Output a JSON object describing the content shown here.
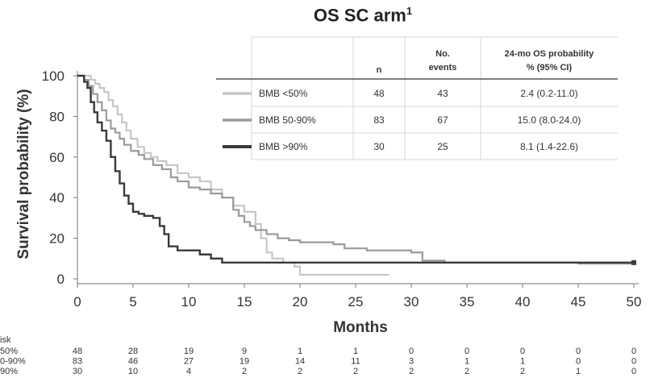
{
  "title": "OS SC arm",
  "title_superscript": "1",
  "chart_data": {
    "type": "line",
    "xlabel": "Months",
    "ylabel": "Survival probability (%)",
    "xlim": [
      0,
      50
    ],
    "ylim": [
      0,
      100
    ],
    "xticks": [
      0,
      5,
      10,
      15,
      20,
      25,
      30,
      35,
      40,
      45,
      50
    ],
    "yticks": [
      0,
      20,
      40,
      60,
      80,
      100
    ],
    "grid": false,
    "series": [
      {
        "name": "BMB <50%",
        "color": "#c6c6c6",
        "points": [
          [
            0,
            100
          ],
          [
            0.8,
            100
          ],
          [
            1.2,
            98
          ],
          [
            1.6,
            96
          ],
          [
            2,
            94
          ],
          [
            2.4,
            92
          ],
          [
            2.8,
            88
          ],
          [
            3.2,
            85
          ],
          [
            3.6,
            81
          ],
          [
            4,
            77
          ],
          [
            4.4,
            73
          ],
          [
            4.8,
            69
          ],
          [
            5.4,
            65
          ],
          [
            6,
            62
          ],
          [
            6.6,
            60
          ],
          [
            7.2,
            58
          ],
          [
            8,
            56
          ],
          [
            9,
            52
          ],
          [
            10,
            50
          ],
          [
            11,
            48
          ],
          [
            12,
            44
          ],
          [
            13,
            40
          ],
          [
            14,
            36
          ],
          [
            15,
            33
          ],
          [
            16,
            27
          ],
          [
            16.5,
            20
          ],
          [
            17,
            13
          ],
          [
            17.5,
            10
          ],
          [
            18.5,
            8
          ],
          [
            19.5,
            6
          ],
          [
            20,
            2
          ],
          [
            22,
            2
          ],
          [
            24,
            2
          ],
          [
            26,
            2
          ],
          [
            28,
            2
          ]
        ]
      },
      {
        "name": "BMB 50-90%",
        "color": "#9a9a9a",
        "points": [
          [
            0,
            100
          ],
          [
            0.6,
            98
          ],
          [
            1,
            95
          ],
          [
            1.4,
            91
          ],
          [
            1.8,
            87
          ],
          [
            2.2,
            83
          ],
          [
            2.6,
            78
          ],
          [
            3,
            74
          ],
          [
            3.4,
            72
          ],
          [
            3.8,
            69
          ],
          [
            4.2,
            66
          ],
          [
            4.8,
            63
          ],
          [
            5.5,
            61
          ],
          [
            6,
            59
          ],
          [
            6.8,
            56
          ],
          [
            7.6,
            54
          ],
          [
            8.4,
            50
          ],
          [
            9,
            48
          ],
          [
            10,
            45
          ],
          [
            11,
            44
          ],
          [
            12,
            42
          ],
          [
            13,
            40
          ],
          [
            14,
            34
          ],
          [
            14.5,
            31
          ],
          [
            15,
            28
          ],
          [
            15.5,
            26
          ],
          [
            16,
            24
          ],
          [
            17,
            22
          ],
          [
            18,
            20
          ],
          [
            19,
            19
          ],
          [
            20,
            18
          ],
          [
            22,
            18
          ],
          [
            23,
            17
          ],
          [
            24,
            15
          ],
          [
            26,
            14
          ],
          [
            28,
            14
          ],
          [
            30,
            13
          ],
          [
            31,
            9
          ],
          [
            33,
            8
          ],
          [
            35,
            8
          ],
          [
            40,
            8
          ],
          [
            43,
            8
          ],
          [
            45,
            7.5
          ],
          [
            50,
            7.5
          ]
        ]
      },
      {
        "name": "BMB >90%",
        "color": "#3a3a3a",
        "points": [
          [
            0,
            100
          ],
          [
            0.6,
            97
          ],
          [
            0.9,
            94
          ],
          [
            1.2,
            87
          ],
          [
            1.5,
            82
          ],
          [
            1.8,
            77
          ],
          [
            2.2,
            73
          ],
          [
            2.6,
            68
          ],
          [
            3,
            60
          ],
          [
            3.4,
            53
          ],
          [
            3.8,
            47
          ],
          [
            4.2,
            41
          ],
          [
            4.6,
            37
          ],
          [
            5,
            33
          ],
          [
            5.5,
            32
          ],
          [
            6,
            31
          ],
          [
            6.8,
            30
          ],
          [
            7.4,
            26
          ],
          [
            7.8,
            22
          ],
          [
            8.2,
            16
          ],
          [
            9,
            14
          ],
          [
            10,
            14
          ],
          [
            11,
            12
          ],
          [
            12,
            10
          ],
          [
            13,
            8
          ],
          [
            20,
            8
          ],
          [
            30,
            8
          ],
          [
            40,
            8
          ],
          [
            50,
            8
          ]
        ]
      }
    ],
    "legend_table": {
      "headers": [
        "",
        "n",
        "No. events",
        "24-mo OS probability % (95% CI)"
      ],
      "rows": [
        {
          "label": "BMB <50%",
          "n": "48",
          "events": "43",
          "os24": "2.4 (0.2-11.0)"
        },
        {
          "label": "BMB 50-90%",
          "n": "83",
          "events": "67",
          "os24": "15.0 (8.0-24.0)"
        },
        {
          "label": "BMB >90%",
          "n": "30",
          "events": "25",
          "os24": "8.1 (1.4-22.6)"
        }
      ]
    },
    "risk_table": {
      "header": "isk",
      "rows": [
        {
          "label": "50%",
          "values": [
            "48",
            "28",
            "19",
            "9",
            "1",
            "1",
            "0",
            "0",
            "0",
            "0",
            "0"
          ]
        },
        {
          "label": "0-90%",
          "values": [
            "83",
            "46",
            "27",
            "19",
            "14",
            "11",
            "3",
            "1",
            "1",
            "0",
            "0"
          ]
        },
        {
          "label": "90%",
          "values": [
            "30",
            "10",
            "4",
            "2",
            "2",
            "2",
            "2",
            "2",
            "2",
            "1",
            "0"
          ]
        }
      ]
    }
  }
}
